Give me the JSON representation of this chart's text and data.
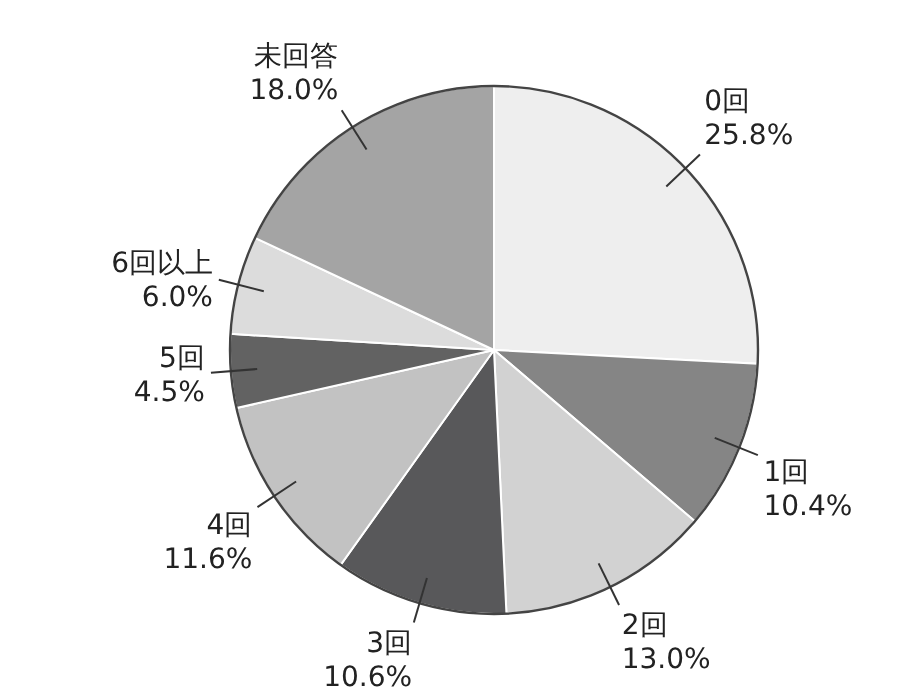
{
  "chart_data": {
    "type": "pie",
    "categories": [
      "0回",
      "1回",
      "2回",
      "3回",
      "4回",
      "5回",
      "6回以上",
      "未回答"
    ],
    "values": [
      25.8,
      10.4,
      13.0,
      10.6,
      11.6,
      4.5,
      6.0,
      18.0
    ],
    "value_labels": [
      "25.8%",
      "10.4%",
      "13.0%",
      "10.6%",
      "11.6%",
      "4.5%",
      "6.0%",
      "18.0%"
    ],
    "colors": [
      "#eeeeee",
      "#858585",
      "#d2d2d2",
      "#58585a",
      "#c2c2c2",
      "#626262",
      "#dcdcdc",
      "#a4a4a4"
    ]
  }
}
